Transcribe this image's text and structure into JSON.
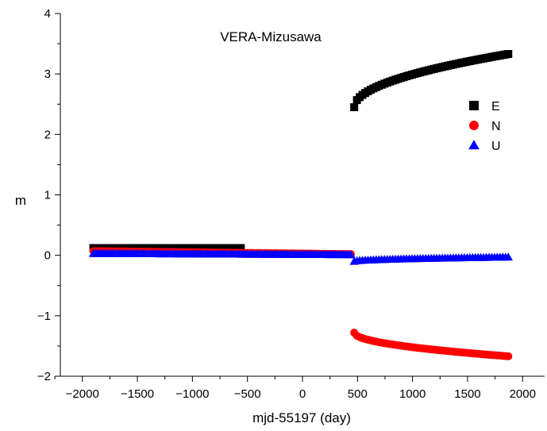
{
  "chart_data": {
    "type": "scatter",
    "title": "VERA-Mizusawa",
    "xlabel": "mjd-55197 (day)",
    "ylabel": "m",
    "xlim": [
      -2200,
      2200
    ],
    "ylim": [
      -2,
      4
    ],
    "xticks": [
      -2000,
      -1500,
      -1000,
      -500,
      0,
      500,
      1000,
      1500,
      2000
    ],
    "yticks": [
      -2,
      -1,
      0,
      1,
      2,
      3,
      4
    ],
    "grid": false,
    "legend_position": "right-upper",
    "series": [
      {
        "name": "E",
        "marker": "square",
        "color": "#000000",
        "segments": [
          {
            "x_start": -1900,
            "x_end": -550,
            "y_start": 0.12,
            "y_end": 0.12,
            "step": 20
          },
          {
            "x_start": 470,
            "x_end": 1870,
            "curve": "sqrt",
            "y_start": 2.45,
            "y_end": 3.33,
            "step": 25
          }
        ]
      },
      {
        "name": "N",
        "marker": "circle",
        "color": "#ff0000",
        "segments": [
          {
            "x_start": -1900,
            "x_end": 440,
            "y_start": 0.07,
            "y_end": 0.02,
            "step": 20
          },
          {
            "x_start": 470,
            "x_end": 1870,
            "curve": "sqrt",
            "y_start": -1.28,
            "y_end": -1.67,
            "step": 25
          }
        ]
      },
      {
        "name": "U",
        "marker": "triangle",
        "color": "#0000ff",
        "segments": [
          {
            "x_start": -1900,
            "x_end": 440,
            "y_start": 0.03,
            "y_end": 0.01,
            "step": 20
          },
          {
            "x_start": 470,
            "x_end": 1870,
            "curve": "sqrt",
            "y_start": -0.1,
            "y_end": -0.03,
            "step": 25
          }
        ]
      }
    ]
  }
}
